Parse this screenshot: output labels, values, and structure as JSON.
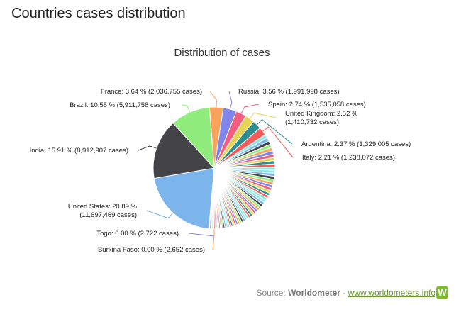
{
  "page": {
    "title": "Countries cases distribution"
  },
  "source": {
    "label": "Source:",
    "name": "Worldometer",
    "separator": "-",
    "link": "www.worldometers.info",
    "icon": "worldometer-logo-icon"
  },
  "chart_data": {
    "type": "pie",
    "title": "Distribution of cases",
    "series": [
      {
        "name": "United States",
        "value": 20.89,
        "cases": "11,697,469",
        "color": "#7cb5ec",
        "label_lines": [
          "United States: 20.89 %",
          "(11,697,469 cases)"
        ]
      },
      {
        "name": "India",
        "value": 15.91,
        "cases": "8,912,907",
        "color": "#434348",
        "label_lines": [
          "India: 15.91 % (8,912,907 cases)"
        ]
      },
      {
        "name": "Brazil",
        "value": 10.55,
        "cases": "5,911,758",
        "color": "#90ed7d",
        "label_lines": [
          "Brazil: 10.55 % (5,911,758 cases)"
        ]
      },
      {
        "name": "France",
        "value": 3.64,
        "cases": "2,036,755",
        "color": "#f7a35c",
        "label_lines": [
          "France: 3.64 % (2,036,755 cases)"
        ]
      },
      {
        "name": "Russia",
        "value": 3.56,
        "cases": "1,991,998",
        "color": "#8085e9",
        "label_lines": [
          "Russia: 3.56 % (1,991,998 cases)"
        ]
      },
      {
        "name": "Spain",
        "value": 2.74,
        "cases": "1,535,058",
        "color": "#f15c80",
        "label_lines": [
          "Spain: 2.74 % (1,535,058 cases)"
        ]
      },
      {
        "name": "United Kingdom",
        "value": 2.52,
        "cases": "1,410,732",
        "color": "#e4d354",
        "label_lines": [
          "United Kingdom: 2.52 %",
          "(1,410,732 cases)"
        ]
      },
      {
        "name": "Argentina",
        "value": 2.37,
        "cases": "1,329,005",
        "color": "#2b908f",
        "label_lines": [
          "Argentina: 2.37 % (1,329,005 cases)"
        ]
      },
      {
        "name": "Italy",
        "value": 2.21,
        "cases": "1,238,072",
        "color": "#f45b5b",
        "label_lines": [
          "Italy: 2.21 % (1,238,072 cases)"
        ]
      },
      {
        "name": "Togo",
        "value": 0.0,
        "cases": "2,722",
        "color": "#8085e9",
        "label_lines": [
          "Togo: 0.00 % (2,722 cases)"
        ]
      },
      {
        "name": "Burkina Faso",
        "value": 0.0,
        "cases": "2,652",
        "color": "#f7a35c",
        "label_lines": [
          "Burkina Faso: 0.00 % (2,652 cases)"
        ]
      }
    ],
    "other_slice_colors": [
      "#91e8e1",
      "#7cb5ec",
      "#434348",
      "#90ed7d",
      "#f7a35c",
      "#8085e9",
      "#f15c80",
      "#e4d354",
      "#2b908f",
      "#f45b5b",
      "#91e8e1"
    ]
  }
}
